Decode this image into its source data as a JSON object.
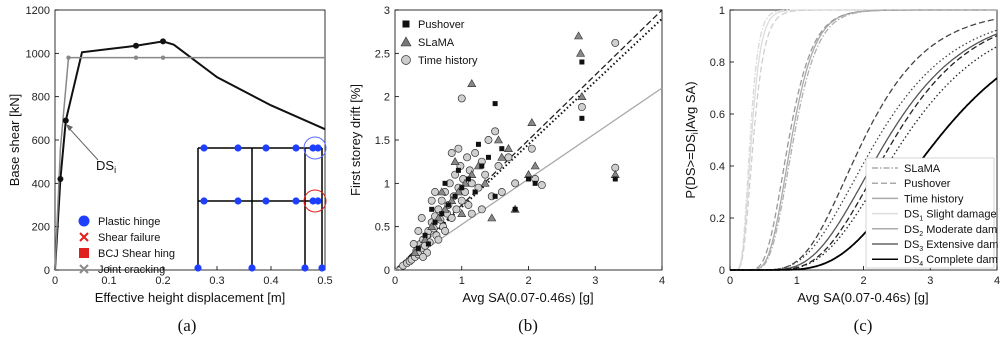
{
  "chart_data": [
    {
      "type": "line",
      "panel_label": "(a)",
      "xlabel": "Effective height displacement [m]",
      "ylabel": "Base shear [kN]",
      "xlim": [
        0,
        0.5
      ],
      "ylim": [
        0,
        1200
      ],
      "x_ticks": [
        "0",
        "0.1",
        "0.2",
        "0.3",
        "0.4",
        "0.5"
      ],
      "y_ticks": [
        "0",
        "200",
        "400",
        "600",
        "800",
        "1000",
        "1200"
      ],
      "grid": false,
      "series": [
        {
          "color": "#111111",
          "x": [
            0,
            0.01,
            0.02,
            0.05,
            0.1,
            0.15,
            0.2,
            0.22,
            0.3,
            0.4,
            0.5
          ],
          "y": [
            0,
            420,
            690,
            1005,
            1020,
            1035,
            1055,
            1040,
            890,
            760,
            650
          ]
        },
        {
          "color": "#888888",
          "x": [
            0,
            0.01,
            0.025,
            0.15,
            0.2,
            0.5
          ],
          "y": [
            0,
            560,
            980,
            980,
            980,
            980
          ]
        }
      ],
      "markers": [
        {
          "x": 0.01,
          "y": 420
        },
        {
          "x": 0.02,
          "y": 690
        },
        {
          "x": 0.15,
          "y": 1035
        },
        {
          "x": 0.2,
          "y": 1055
        }
      ],
      "grey_markers": [
        {
          "x": 0.025,
          "y": 980
        },
        {
          "x": 0.15,
          "y": 980
        },
        {
          "x": 0.2,
          "y": 980
        }
      ],
      "annotation": {
        "base": "DS",
        "sub": "i",
        "point": {
          "x": 0.02,
          "y": 690
        }
      },
      "legend": {
        "position": "bottom-right",
        "entries": [
          {
            "label": "Plastic hinge",
            "color": "#1f3fff",
            "symbol": "circle"
          },
          {
            "label": "Shear failure",
            "color": "#e0201c",
            "symbol": "x"
          },
          {
            "label": "BCJ Shear hing",
            "color": "#e0201c",
            "symbol": "square"
          },
          {
            "label": "Joint cracking",
            "color": "#8a8a8a",
            "symbol": "x"
          }
        ]
      }
    },
    {
      "type": "scatter",
      "panel_label": "(b)",
      "xlabel": "Avg SA(0.07-0.46s) [g]",
      "ylabel": "First storey drift [%]",
      "xlim": [
        0,
        4
      ],
      "ylim": [
        0,
        3
      ],
      "x_ticks": [
        "0",
        "1",
        "2",
        "3",
        "4"
      ],
      "y_ticks": [
        "0",
        "0.5",
        "1",
        "1.5",
        "2",
        "2.5",
        "3"
      ],
      "grid": false,
      "legend": {
        "position": "top-left",
        "entries": [
          {
            "label": "Pushover",
            "symbol": "square",
            "color": "#111111"
          },
          {
            "label": "SLaMA",
            "symbol": "triangle",
            "color": "#777777"
          },
          {
            "label": "Time history",
            "symbol": "circle",
            "color": "#cccccc"
          }
        ]
      },
      "fit_lines": [
        {
          "style": "dashed",
          "color": "#222222",
          "x": [
            0,
            4
          ],
          "y": [
            0,
            3.0
          ]
        },
        {
          "style": "dotted",
          "color": "#111111",
          "x": [
            0,
            4
          ],
          "y": [
            0,
            2.9
          ]
        },
        {
          "style": "solid",
          "color": "#aaaaaa",
          "x": [
            0,
            4
          ],
          "y": [
            0,
            2.1
          ]
        }
      ],
      "series": [
        {
          "marker": "circle",
          "color": "#cfcfcf",
          "points": [
            [
              0.12,
              0.05
            ],
            [
              0.18,
              0.08
            ],
            [
              0.22,
              0.1
            ],
            [
              0.25,
              0.12
            ],
            [
              0.3,
              0.15
            ],
            [
              0.32,
              0.22
            ],
            [
              0.35,
              0.18
            ],
            [
              0.38,
              0.3
            ],
            [
              0.4,
              0.25
            ],
            [
              0.42,
              0.35
            ],
            [
              0.45,
              0.28
            ],
            [
              0.48,
              0.4
            ],
            [
              0.5,
              0.45
            ],
            [
              0.52,
              0.32
            ],
            [
              0.55,
              0.55
            ],
            [
              0.58,
              0.48
            ],
            [
              0.6,
              0.62
            ],
            [
              0.62,
              0.4
            ],
            [
              0.65,
              0.7
            ],
            [
              0.68,
              0.58
            ],
            [
              0.7,
              0.8
            ],
            [
              0.72,
              0.5
            ],
            [
              0.75,
              0.9
            ],
            [
              0.78,
              0.65
            ],
            [
              0.8,
              0.75
            ],
            [
              0.82,
              1.0
            ],
            [
              0.85,
              0.6
            ],
            [
              0.88,
              0.85
            ],
            [
              0.9,
              1.1
            ],
            [
              0.92,
              0.7
            ],
            [
              0.95,
              0.95
            ],
            [
              0.98,
              1.2
            ],
            [
              1.0,
              0.8
            ],
            [
              1.02,
              1.05
            ],
            [
              1.05,
              0.9
            ],
            [
              1.08,
              1.3
            ],
            [
              1.1,
              0.75
            ],
            [
              1.12,
              1.15
            ],
            [
              1.15,
              1.0
            ],
            [
              1.2,
              1.35
            ],
            [
              1.25,
              0.95
            ],
            [
              1.3,
              1.25
            ],
            [
              1.35,
              1.1
            ],
            [
              1.4,
              1.5
            ],
            [
              1.45,
              0.85
            ],
            [
              1.5,
              1.6
            ],
            [
              1.55,
              1.2
            ],
            [
              1.6,
              0.9
            ],
            [
              1.7,
              1.3
            ],
            [
              1.8,
              1.0
            ],
            [
              0.95,
              1.4
            ],
            [
              0.85,
              1.35
            ],
            [
              0.6,
              0.9
            ],
            [
              0.55,
              0.8
            ],
            [
              0.4,
              0.6
            ],
            [
              0.35,
              0.45
            ],
            [
              0.28,
              0.3
            ],
            [
              1.0,
              1.98
            ],
            [
              2.05,
              1.4
            ],
            [
              2.2,
              0.98
            ],
            [
              2.1,
              1.05
            ],
            [
              3.3,
              2.62
            ],
            [
              3.3,
              1.18
            ],
            [
              2.8,
              1.88
            ],
            [
              0.65,
              0.35
            ],
            [
              0.75,
              0.45
            ],
            [
              0.48,
              0.2
            ],
            [
              0.42,
              0.15
            ],
            [
              1.15,
              0.65
            ],
            [
              1.3,
              0.7
            ]
          ]
        },
        {
          "marker": "triangle",
          "color": "#888888",
          "points": [
            [
              0.3,
              0.2
            ],
            [
              0.45,
              0.35
            ],
            [
              0.55,
              0.5
            ],
            [
              0.65,
              0.6
            ],
            [
              0.75,
              0.7
            ],
            [
              0.85,
              0.8
            ],
            [
              0.95,
              0.9
            ],
            [
              1.05,
              1.0
            ],
            [
              1.15,
              1.1
            ],
            [
              1.25,
              1.2
            ],
            [
              1.35,
              1.0
            ],
            [
              1.45,
              0.6
            ],
            [
              1.55,
              1.5
            ],
            [
              1.6,
              1.3
            ],
            [
              1.7,
              1.4
            ],
            [
              2.0,
              1.1
            ],
            [
              2.05,
              1.7
            ],
            [
              2.1,
              1.2
            ],
            [
              2.75,
              2.7
            ],
            [
              2.78,
              2.5
            ],
            [
              2.8,
              2.0
            ],
            [
              3.3,
              1.1
            ],
            [
              1.15,
              2.15
            ],
            [
              1.8,
              0.7
            ],
            [
              0.7,
              0.9
            ],
            [
              0.9,
              1.25
            ],
            [
              1.0,
              0.65
            ]
          ]
        },
        {
          "marker": "square",
          "color": "#111111",
          "points": [
            [
              0.35,
              0.25
            ],
            [
              0.45,
              0.4
            ],
            [
              0.5,
              0.3
            ],
            [
              0.6,
              0.55
            ],
            [
              0.7,
              0.65
            ],
            [
              0.8,
              0.75
            ],
            [
              0.9,
              0.85
            ],
            [
              1.0,
              0.95
            ],
            [
              1.1,
              1.05
            ],
            [
              1.2,
              0.9
            ],
            [
              1.3,
              1.2
            ],
            [
              1.4,
              1.3
            ],
            [
              1.5,
              0.85
            ],
            [
              1.6,
              1.4
            ],
            [
              1.8,
              0.7
            ],
            [
              2.0,
              1.05
            ],
            [
              2.1,
              1.0
            ],
            [
              2.8,
              1.75
            ],
            [
              2.8,
              2.4
            ],
            [
              3.3,
              1.05
            ],
            [
              1.5,
              1.92
            ],
            [
              0.75,
              1.0
            ],
            [
              0.95,
              1.15
            ],
            [
              0.55,
              0.7
            ],
            [
              1.25,
              1.45
            ]
          ]
        }
      ]
    },
    {
      "type": "line",
      "panel_label": "(c)",
      "xlabel": "Avg SA(0.07-0.46s) [g]",
      "ylabel_parts": {
        "a": "P(DS>=DS",
        "sub": "i",
        "b": "|Avg SA)"
      },
      "xlim": [
        0,
        4
      ],
      "ylim": [
        0,
        1
      ],
      "x_ticks": [
        "0",
        "1",
        "2",
        "3",
        "4"
      ],
      "y_ticks": [
        "0",
        "0.2",
        "0.4",
        "0.6",
        "0.8",
        "1"
      ],
      "grid": false,
      "legend": {
        "position": "top-right",
        "entries": [
          {
            "label": "SLaMA",
            "style": "dashdot",
            "color": "#aaaaaa"
          },
          {
            "label": "Pushover",
            "style": "dashed",
            "color": "#aaaaaa"
          },
          {
            "label": "Time history",
            "style": "solid",
            "color": "#aaaaaa"
          },
          {
            "label_base": "DS",
            "label_sub": "1",
            "label_rest": " Slight damage",
            "style": "solid",
            "color": "#dddddd"
          },
          {
            "label_base": "DS",
            "label_sub": "2",
            "label_rest": " Moderate dam",
            "style": "solid",
            "color": "#aaaaaa"
          },
          {
            "label_base": "DS",
            "label_sub": "3",
            "label_rest": " Extensive dam",
            "style": "solid",
            "color": "#666666"
          },
          {
            "label_base": "DS",
            "label_sub": "4",
            "label_rest": " Complete dam",
            "style": "solid",
            "color": "#000000"
          }
        ]
      },
      "curves": [
        {
          "ds": 1,
          "color": "#dddddd",
          "style": "solid",
          "median": 0.32,
          "beta": 0.35
        },
        {
          "ds": 1,
          "color": "#cfcfcf",
          "style": "dashed",
          "median": 0.35,
          "beta": 0.38
        },
        {
          "ds": 1,
          "color": "#d8d8d8",
          "style": "dashdot",
          "median": 0.3,
          "beta": 0.33
        },
        {
          "ds": 2,
          "color": "#aaaaaa",
          "style": "solid",
          "median": 0.92,
          "beta": 0.3
        },
        {
          "ds": 2,
          "color": "#999999",
          "style": "dashed",
          "median": 0.88,
          "beta": 0.32
        },
        {
          "ds": 2,
          "color": "#b0b0b0",
          "style": "dashdot",
          "median": 0.95,
          "beta": 0.3
        },
        {
          "ds": 3,
          "color": "#444444",
          "style": "dashed",
          "median": 2.0,
          "beta": 0.38
        },
        {
          "ds": 3,
          "color": "#444444",
          "style": "dotted",
          "median": 2.2,
          "beta": 0.42
        },
        {
          "ds": 3,
          "color": "#555555",
          "style": "solid",
          "median": 2.35,
          "beta": 0.4
        },
        {
          "ds": 4,
          "color": "#222222",
          "style": "dashed",
          "median": 2.45,
          "beta": 0.38
        },
        {
          "ds": 4,
          "color": "#222222",
          "style": "dotted",
          "median": 2.6,
          "beta": 0.4
        },
        {
          "ds": 4,
          "color": "#000000",
          "style": "solid",
          "median": 3.1,
          "beta": 0.4
        }
      ]
    }
  ]
}
